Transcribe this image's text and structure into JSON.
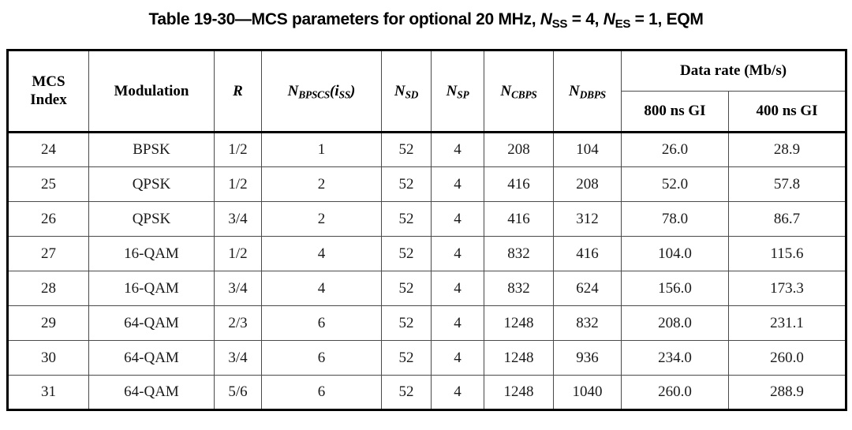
{
  "title": {
    "prefix": "Table 19-30—MCS parameters for optional 20 MHz, ",
    "n1_base": "N",
    "n1_sub": "SS",
    "n1_rest": " = 4, ",
    "n2_base": "N",
    "n2_sub": "ES",
    "n2_rest": " = 1, EQM"
  },
  "table": {
    "columns": {
      "mcs_line1": "MCS",
      "mcs_line2": "Index",
      "modulation": "Modulation",
      "r": "R",
      "nbpscs": {
        "base": "N",
        "sub": "BPSCS",
        "open": "(",
        "ivar": "i",
        "isub": "SS",
        "close": ")"
      },
      "nsd": {
        "base": "N",
        "sub": "SD"
      },
      "nsp": {
        "base": "N",
        "sub": "SP"
      },
      "ncbps": {
        "base": "N",
        "sub": "CBPS"
      },
      "ndbps": {
        "base": "N",
        "sub": "DBPS"
      },
      "data_rate": "Data rate (Mb/s)",
      "gi800": "800 ns GI",
      "gi400": "400 ns GI"
    },
    "rows": [
      {
        "index": "24",
        "modulation": "BPSK",
        "r": "1/2",
        "nbpscs": "1",
        "nsd": "52",
        "nsp": "4",
        "ncbps": "208",
        "ndbps": "104",
        "dr800": "26.0",
        "dr400": "28.9"
      },
      {
        "index": "25",
        "modulation": "QPSK",
        "r": "1/2",
        "nbpscs": "2",
        "nsd": "52",
        "nsp": "4",
        "ncbps": "416",
        "ndbps": "208",
        "dr800": "52.0",
        "dr400": "57.8"
      },
      {
        "index": "26",
        "modulation": "QPSK",
        "r": "3/4",
        "nbpscs": "2",
        "nsd": "52",
        "nsp": "4",
        "ncbps": "416",
        "ndbps": "312",
        "dr800": "78.0",
        "dr400": "86.7"
      },
      {
        "index": "27",
        "modulation": "16-QAM",
        "r": "1/2",
        "nbpscs": "4",
        "nsd": "52",
        "nsp": "4",
        "ncbps": "832",
        "ndbps": "416",
        "dr800": "104.0",
        "dr400": "115.6"
      },
      {
        "index": "28",
        "modulation": "16-QAM",
        "r": "3/4",
        "nbpscs": "4",
        "nsd": "52",
        "nsp": "4",
        "ncbps": "832",
        "ndbps": "624",
        "dr800": "156.0",
        "dr400": "173.3"
      },
      {
        "index": "29",
        "modulation": "64-QAM",
        "r": "2/3",
        "nbpscs": "6",
        "nsd": "52",
        "nsp": "4",
        "ncbps": "1248",
        "ndbps": "832",
        "dr800": "208.0",
        "dr400": "231.1"
      },
      {
        "index": "30",
        "modulation": "64-QAM",
        "r": "3/4",
        "nbpscs": "6",
        "nsd": "52",
        "nsp": "4",
        "ncbps": "1248",
        "ndbps": "936",
        "dr800": "234.0",
        "dr400": "260.0"
      },
      {
        "index": "31",
        "modulation": "64-QAM",
        "r": "5/6",
        "nbpscs": "6",
        "nsd": "52",
        "nsp": "4",
        "ncbps": "1248",
        "ndbps": "1040",
        "dr800": "260.0",
        "dr400": "288.9"
      }
    ]
  },
  "colors": {
    "border_heavy": "#000000",
    "border_light": "#4a4a4a",
    "text": "#111111",
    "background": "#ffffff"
  }
}
